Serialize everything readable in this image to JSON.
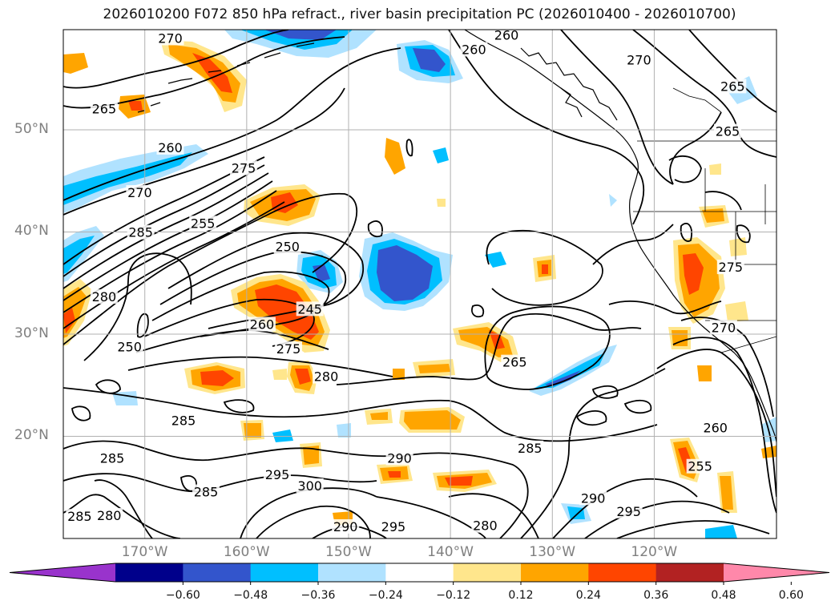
{
  "title": "2026010200 F072 850 hPa refract., river basin precipitation PC (2026010400 - 2026010700)",
  "lat_labels": [
    {
      "lat": 50,
      "text": "50°N"
    },
    {
      "lat": 40,
      "text": "40°N"
    },
    {
      "lat": 30,
      "text": "30°N"
    },
    {
      "lat": 20,
      "text": "20°N"
    }
  ],
  "lon_labels": [
    {
      "lon": -170,
      "text": "170°W"
    },
    {
      "lon": -160,
      "text": "160°W"
    },
    {
      "lon": -150,
      "text": "150°W"
    },
    {
      "lon": -140,
      "text": "140°W"
    },
    {
      "lon": -130,
      "text": "130°W"
    },
    {
      "lon": -120,
      "text": "120°W"
    }
  ],
  "extent": {
    "lon_min": -178,
    "lon_max": -108,
    "lat_min": 10,
    "lat_max": 59.8
  },
  "colorbar": {
    "ticks": [
      "−0.60",
      "−0.48",
      "−0.36",
      "−0.24",
      "−0.12",
      "0.12",
      "0.24",
      "0.36",
      "0.48",
      "0.60"
    ],
    "colors": [
      "#9933cc",
      "#00008b",
      "#3355cc",
      "#00bfff",
      "#b0e2ff",
      "#ffffff",
      "#ffe68c",
      "#ffa500",
      "#ff4500",
      "#b22222",
      "#ff88aa"
    ]
  },
  "contour_labels": [
    {
      "text": "270",
      "lon": -167.5,
      "lat": 58.9
    },
    {
      "text": "265",
      "lon": -174,
      "lat": 52
    },
    {
      "text": "260",
      "lon": -167.5,
      "lat": 48.2
    },
    {
      "text": "270",
      "lon": -170.5,
      "lat": 43.8
    },
    {
      "text": "275",
      "lon": -160.3,
      "lat": 46.2
    },
    {
      "text": "285",
      "lon": -170.4,
      "lat": 39.9
    },
    {
      "text": "255",
      "lon": -164.3,
      "lat": 40.8
    },
    {
      "text": "250",
      "lon": -156,
      "lat": 38.5
    },
    {
      "text": "280",
      "lon": -174,
      "lat": 33.6
    },
    {
      "text": "245",
      "lon": -153.8,
      "lat": 32.4
    },
    {
      "text": "250",
      "lon": -171.5,
      "lat": 28.7
    },
    {
      "text": "260",
      "lon": -158.5,
      "lat": 30.9
    },
    {
      "text": "275",
      "lon": -155.9,
      "lat": 28.5
    },
    {
      "text": "280",
      "lon": -152.2,
      "lat": 25.8
    },
    {
      "text": "265",
      "lon": -133.7,
      "lat": 27.2
    },
    {
      "text": "285",
      "lon": -166.2,
      "lat": 21.5
    },
    {
      "text": "285",
      "lon": -173.2,
      "lat": 17.8
    },
    {
      "text": "290",
      "lon": -145,
      "lat": 17.8
    },
    {
      "text": "295",
      "lon": -157,
      "lat": 16.2
    },
    {
      "text": "300",
      "lon": -153.8,
      "lat": 15.1
    },
    {
      "text": "285",
      "lon": -164,
      "lat": 14.5
    },
    {
      "text": "285",
      "lon": -132.2,
      "lat": 18.8
    },
    {
      "text": "280",
      "lon": -173.5,
      "lat": 12.2
    },
    {
      "text": "285",
      "lon": -176.4,
      "lat": 12.1
    },
    {
      "text": "290",
      "lon": -150.3,
      "lat": 11.1
    },
    {
      "text": "295",
      "lon": -145.6,
      "lat": 11.1
    },
    {
      "text": "280",
      "lon": -136.6,
      "lat": 11.2
    },
    {
      "text": "290",
      "lon": -126,
      "lat": 13.9
    },
    {
      "text": "295",
      "lon": -122.5,
      "lat": 12.6
    },
    {
      "text": "260",
      "lon": -114,
      "lat": 20.8
    },
    {
      "text": "255",
      "lon": -115.5,
      "lat": 17
    },
    {
      "text": "260",
      "lon": -137.7,
      "lat": 57.8
    },
    {
      "text": "260",
      "lon": -134.5,
      "lat": 59.2
    },
    {
      "text": "270",
      "lon": -121.5,
      "lat": 56.8
    },
    {
      "text": "265",
      "lon": -112.3,
      "lat": 54.2
    },
    {
      "text": "265",
      "lon": -112.8,
      "lat": 49.8
    },
    {
      "text": "275",
      "lon": -112.5,
      "lat": 36.5
    },
    {
      "text": "270",
      "lon": -113.2,
      "lat": 30.6
    }
  ]
}
